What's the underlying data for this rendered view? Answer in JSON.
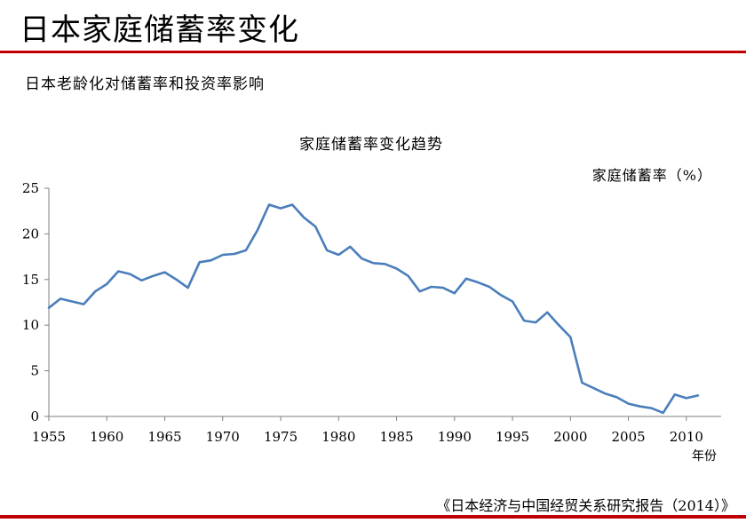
{
  "page": {
    "title": "日本家庭储蓄率变化",
    "subtitle": "日本老龄化对储蓄率和投资率影响",
    "source": "《日本经济与中国经贸关系研究报告（2014）》"
  },
  "colors": {
    "accent": "#c00000",
    "line": "#4a7ebb",
    "axis": "#7f7f7f"
  },
  "chart_data": {
    "type": "line",
    "title": "家庭储蓄率变化趋势",
    "ylabel": "家庭储蓄率（%）",
    "xlabel": "年份",
    "ylim": [
      0,
      25
    ],
    "xlim": [
      1955,
      2013
    ],
    "yticks": [
      0,
      5,
      10,
      15,
      20,
      25
    ],
    "xticks": [
      1955,
      1960,
      1965,
      1970,
      1975,
      1980,
      1985,
      1990,
      1995,
      2000,
      2005,
      2010
    ],
    "grid": false,
    "series": [
      {
        "x": [
          1955,
          1956,
          1957,
          1958,
          1959,
          1960,
          1961,
          1962,
          1963,
          1964,
          1965,
          1966,
          1967,
          1968,
          1969,
          1970,
          1971,
          1972,
          1973,
          1974,
          1975,
          1976,
          1977,
          1978,
          1979,
          1980,
          1981,
          1982,
          1983,
          1984,
          1985,
          1986,
          1987,
          1988,
          1989,
          1990,
          1991,
          1992,
          1993,
          1994,
          1995,
          1996,
          1997,
          1998,
          1999,
          2000,
          2001,
          2002,
          2003,
          2004,
          2005,
          2006,
          2007,
          2008,
          2009,
          2010,
          2011
        ],
        "y": [
          11.9,
          12.9,
          12.6,
          12.3,
          13.7,
          14.5,
          15.9,
          15.6,
          14.9,
          15.4,
          15.8,
          15.0,
          14.1,
          16.9,
          17.1,
          17.7,
          17.8,
          18.2,
          20.4,
          23.2,
          22.8,
          23.2,
          21.8,
          20.8,
          18.2,
          17.7,
          18.6,
          17.3,
          16.8,
          16.7,
          16.2,
          15.4,
          13.7,
          14.2,
          14.1,
          13.5,
          15.1,
          14.7,
          14.2,
          13.3,
          12.6,
          10.5,
          10.3,
          11.4,
          10.0,
          8.7,
          3.7,
          3.1,
          2.5,
          2.1,
          1.4,
          1.1,
          0.9,
          0.4,
          2.4,
          2.0,
          2.3
        ]
      }
    ]
  }
}
